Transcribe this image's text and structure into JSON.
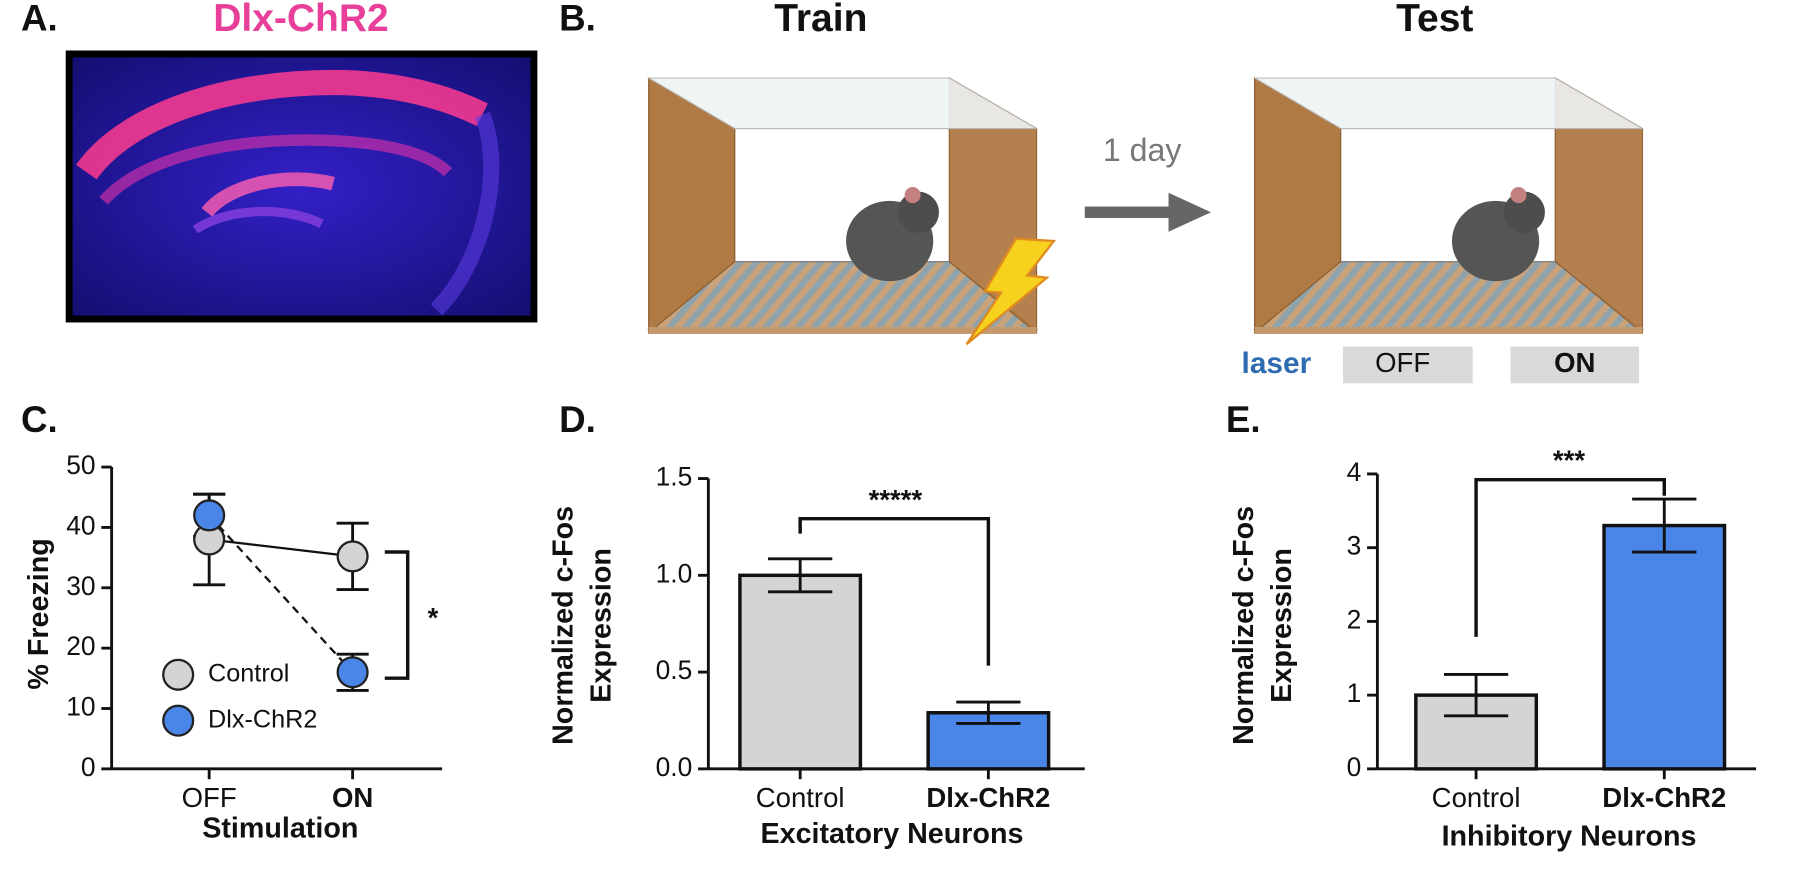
{
  "panel_labels": [
    "A.",
    "B.",
    "C.",
    "D.",
    "E."
  ],
  "image_title": "Dlx-ChR2",
  "diagram": {
    "train": "Train",
    "test": "Test",
    "interval": "1 day",
    "laser": "laser",
    "laser_states": [
      "OFF",
      "ON"
    ]
  },
  "chart_data": [
    {
      "type": "line",
      "categories": [
        "OFF",
        "ON"
      ],
      "x_label": "Stimulation",
      "y_label": [
        "% Freezing"
      ],
      "ylim": [
        0,
        50
      ],
      "yticks": [
        0,
        10,
        20,
        30,
        40,
        50
      ],
      "annotation": "*",
      "series": [
        {
          "name": "Control",
          "color": "#d4d4d4",
          "line_style": "solid",
          "values": [
            38,
            35.2
          ],
          "errors": [
            7.5,
            5.5
          ]
        },
        {
          "name": "Dlx-ChR2",
          "color": "#4a86e8",
          "line_style": "dashed",
          "values": [
            42,
            16
          ],
          "errors": [
            3.5,
            3
          ]
        }
      ]
    },
    {
      "type": "bar",
      "categories": [
        "Control",
        "Dlx-ChR2"
      ],
      "x_label": "Excitatory Neurons",
      "y_label": [
        "Normalized c-Fos",
        "Expression"
      ],
      "ylim": [
        0,
        1.5
      ],
      "yticks": [
        {
          "value": 0,
          "label": "0.0"
        },
        {
          "value": 0.5,
          "label": "0.5"
        },
        {
          "value": 1,
          "label": "1.0"
        },
        {
          "value": 1.5,
          "label": "1.5"
        }
      ],
      "annotation": "*****",
      "colors": [
        "#d4d4d4",
        "#4a86e8"
      ],
      "values": [
        1.0,
        0.29
      ],
      "errors": [
        0.085,
        0.055
      ]
    },
    {
      "type": "bar",
      "categories": [
        "Control",
        "Dlx-ChR2"
      ],
      "x_label": "Inhibitory Neurons",
      "y_label": [
        "Normalized c-Fos",
        "Expression"
      ],
      "ylim": [
        0,
        4
      ],
      "yticks": [
        0,
        1,
        2,
        3,
        4
      ],
      "annotation": "***",
      "colors": [
        "#d4d4d4",
        "#4a86e8"
      ],
      "values": [
        1.0,
        3.3
      ],
      "errors": [
        0.28,
        0.36
      ]
    }
  ]
}
